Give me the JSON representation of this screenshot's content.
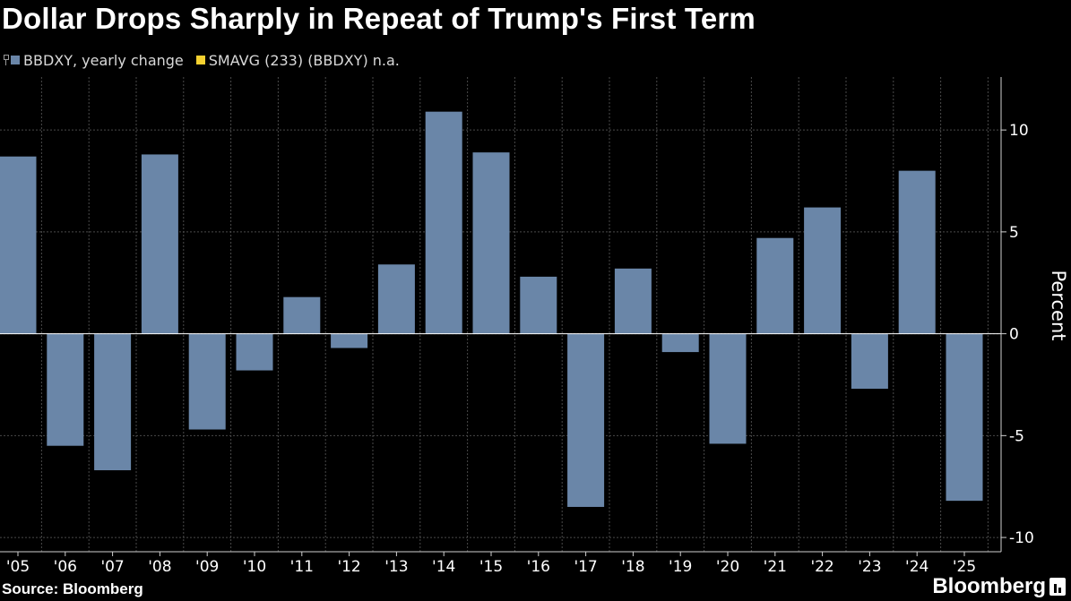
{
  "header": {
    "title": "Dollar Drops Sharply in Repeat of Trump's First Term"
  },
  "legend": {
    "items": [
      {
        "label": "BBDXY, yearly change",
        "color": "#6a86a8"
      },
      {
        "label": "SMAVG (233) (BBDXY) n.a.",
        "color": "#f5d130"
      }
    ]
  },
  "footer": {
    "source": "Source: Bloomberg",
    "brand": "Bloomberg"
  },
  "chart_data": {
    "type": "bar",
    "categories": [
      "'05",
      "'06",
      "'07",
      "'08",
      "'09",
      "'10",
      "'11",
      "'12",
      "'13",
      "'14",
      "'15",
      "'16",
      "'17",
      "'18",
      "'19",
      "'20",
      "'21",
      "'22",
      "'23",
      "'24",
      "'25"
    ],
    "series": [
      {
        "name": "BBDXY, yearly change",
        "values": [
          8.7,
          -5.5,
          -6.7,
          8.8,
          -4.7,
          -1.8,
          1.8,
          -0.7,
          3.4,
          10.9,
          8.9,
          2.8,
          -8.5,
          3.2,
          -0.9,
          -5.4,
          4.7,
          6.2,
          -2.7,
          8.0,
          -8.2
        ]
      }
    ],
    "title": "Dollar Drops Sharply in Repeat of Trump's First Term",
    "ylabel": "Percent",
    "ylim": [
      -10.7,
      12.6
    ],
    "yticks": [
      10,
      5,
      0,
      -5,
      -10
    ],
    "ytick_labels": [
      "10",
      "5",
      "0",
      "-5",
      "-10"
    ],
    "grid": true,
    "y_axis_side": "right",
    "bar_color": "#6a86a8"
  }
}
